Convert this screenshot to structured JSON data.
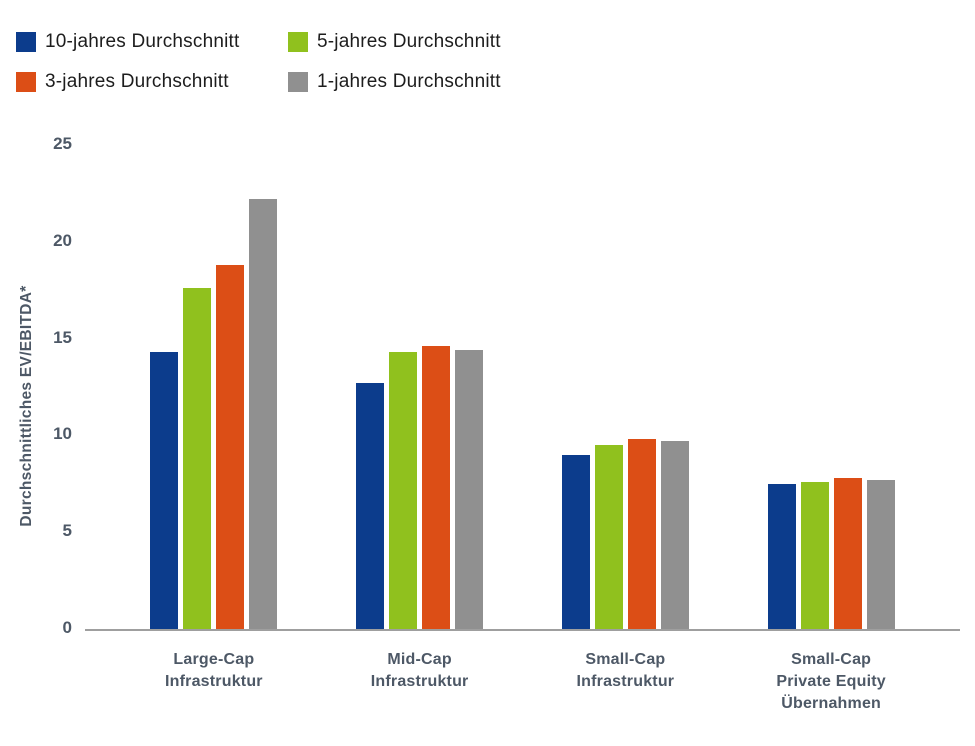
{
  "chart_data": {
    "type": "bar",
    "title": "",
    "xlabel": "",
    "ylabel": "Durchschnittliches EV/EBITDA*",
    "ylim": [
      0,
      25
    ],
    "yticks": [
      0,
      5,
      10,
      15,
      20,
      25
    ],
    "grid": false,
    "legend_position": "top-left",
    "categories": [
      "Large-Cap\nInfrastruktur",
      "Mid-Cap\nInfrastruktur",
      "Small-Cap\nInfrastruktur",
      "Small-Cap\nPrivate Equity\nÜbernahmen"
    ],
    "series": [
      {
        "name": "10-jahres Durchschnitt",
        "color": "#0c3c8c",
        "values": [
          14.3,
          12.7,
          9.0,
          7.5
        ]
      },
      {
        "name": "5-jahres Durchschnitt",
        "color": "#90c11e",
        "values": [
          17.6,
          14.3,
          9.5,
          7.6
        ]
      },
      {
        "name": "3-jahres Durchschnitt",
        "color": "#dc4e16",
        "values": [
          18.8,
          14.6,
          9.8,
          7.8
        ]
      },
      {
        "name": "1-jahres Durchschnitt",
        "color": "#909090",
        "values": [
          22.2,
          14.4,
          9.7,
          7.7
        ]
      }
    ],
    "colors": {
      "axis_line": "#9f9f9f",
      "axis_label": "#4d5866",
      "legend_text": "#1d1d1d",
      "background": "#ffffff"
    }
  }
}
